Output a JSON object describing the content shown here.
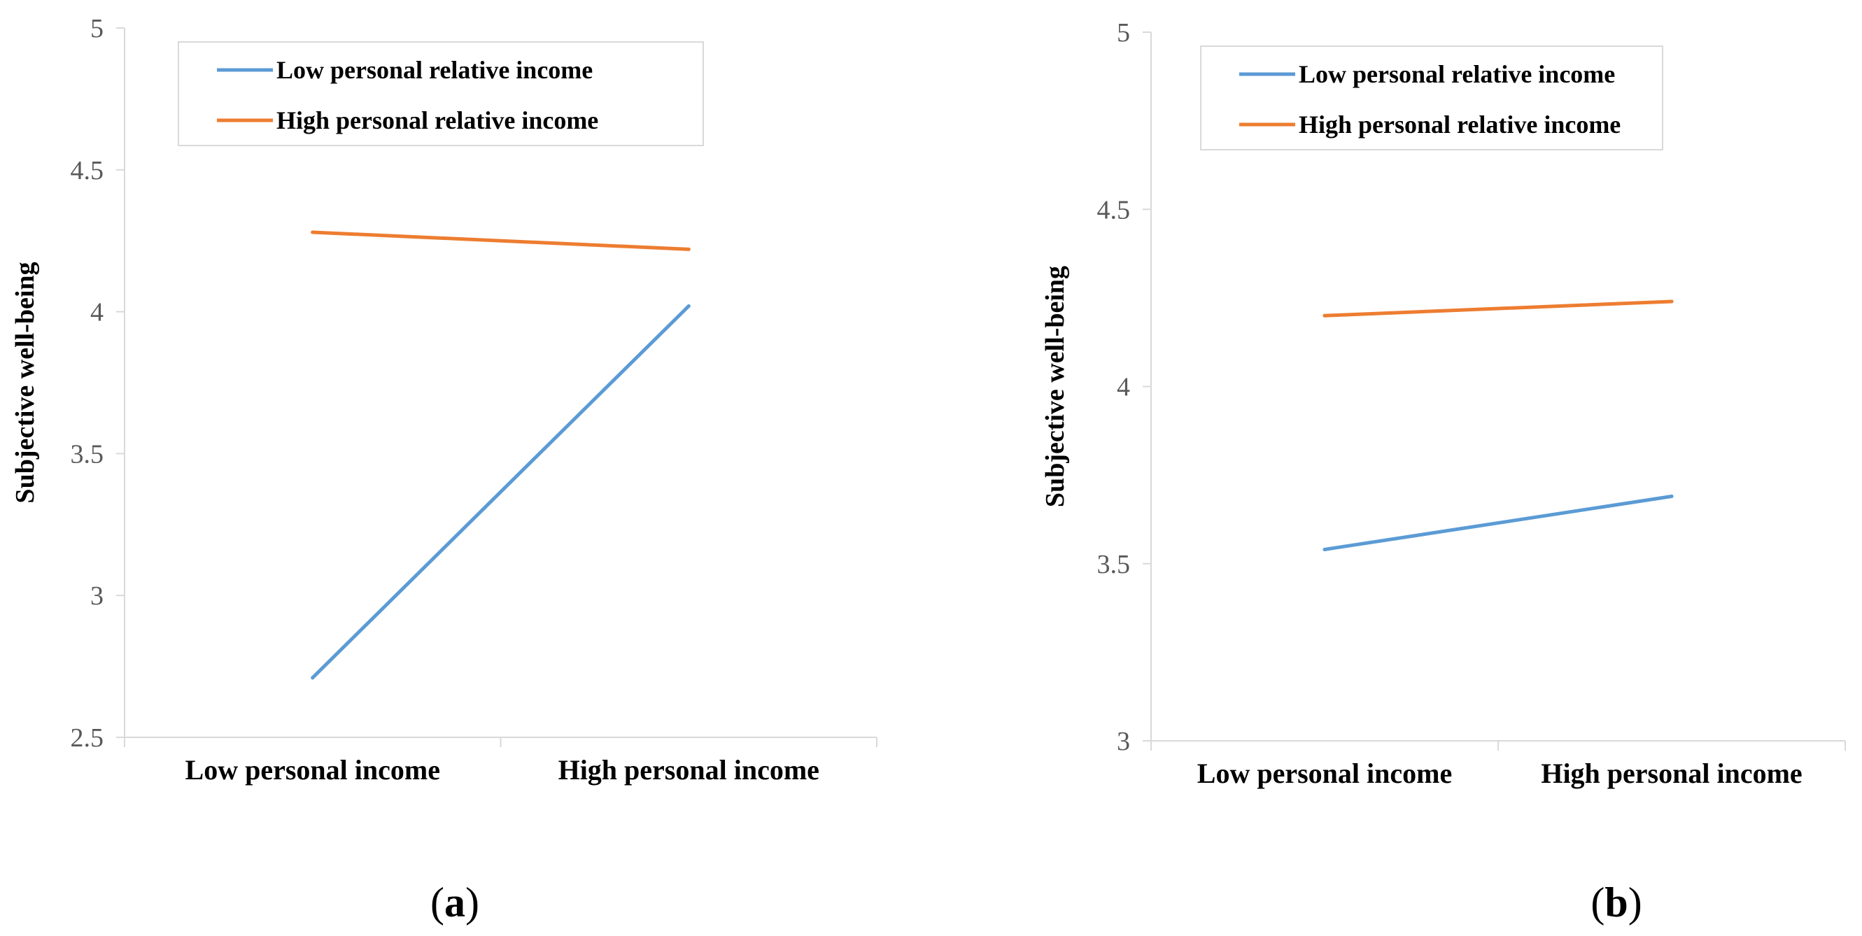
{
  "chart_data": [
    {
      "type": "line",
      "panel_label": "a",
      "categories": [
        "Low personal income",
        "High personal income"
      ],
      "series": [
        {
          "name": "Low personal relative income",
          "color": "#5B9BD5",
          "values": [
            2.71,
            4.02
          ]
        },
        {
          "name": "High personal relative income",
          "color": "#ED7D31",
          "values": [
            4.28,
            4.22
          ]
        }
      ],
      "ylabel": "Subjective well-being",
      "xlabel": "",
      "ylim": [
        2.5,
        5
      ],
      "yticks": [
        "2.5",
        "3",
        "3.5",
        "4",
        "4.5",
        "5"
      ],
      "legend": "top",
      "grid": false
    },
    {
      "type": "line",
      "panel_label": "b",
      "categories": [
        "Low personal income",
        "High personal income"
      ],
      "series": [
        {
          "name": "Low personal relative income",
          "color": "#5B9BD5",
          "values": [
            3.54,
            3.69
          ]
        },
        {
          "name": "High personal relative income",
          "color": "#ED7D31",
          "values": [
            4.2,
            4.24
          ]
        }
      ],
      "ylabel": "Subjective well-being",
      "xlabel": "",
      "ylim": [
        3,
        5
      ],
      "yticks": [
        "3",
        "3.5",
        "4",
        "4.5",
        "5"
      ],
      "legend": "top",
      "grid": false
    }
  ]
}
